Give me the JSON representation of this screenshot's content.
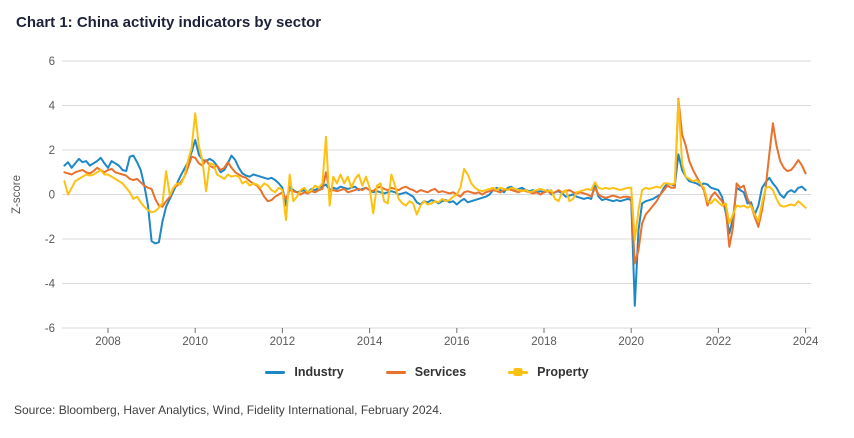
{
  "header": {
    "title": "Chart 1: China activity indicators by sector"
  },
  "footer": {
    "source": "Source: Bloomberg, Haver Analytics, Wind, Fidelity International, February 2024."
  },
  "colors": {
    "industry": "#1e88c7",
    "services": "#e8712c",
    "property": "#fdc112",
    "grid": "#d9d9d9",
    "tick": "#707070",
    "axis_text": "#595959",
    "title_text": "#1e2238",
    "source_text": "#404040"
  },
  "chart_data": {
    "type": "line",
    "title": "Chart 1: China activity indicators by sector",
    "xlabel": "",
    "ylabel": "Z-score",
    "ylim": [
      -6,
      6
    ],
    "yticks": [
      6,
      4,
      2,
      0,
      -2,
      -4,
      -6
    ],
    "xticks": [
      2008,
      2010,
      2012,
      2014,
      2016,
      2018,
      2020,
      2022,
      2024
    ],
    "x_start_year": 2007,
    "x_frequency": "monthly",
    "x_end": "2024-01",
    "grid": "horizontal",
    "legend_position": "bottom",
    "series": [
      {
        "name": "Industry",
        "color": "#1e88c7",
        "values": [
          1.3,
          1.45,
          1.2,
          1.4,
          1.6,
          1.45,
          1.5,
          1.3,
          1.4,
          1.5,
          1.65,
          1.4,
          1.2,
          1.5,
          1.4,
          1.3,
          1.1,
          1.05,
          1.7,
          1.75,
          1.45,
          1.1,
          0.4,
          -0.5,
          -2.1,
          -2.2,
          -2.15,
          -1.2,
          -0.55,
          -0.2,
          0.15,
          0.5,
          0.85,
          1.15,
          1.45,
          1.9,
          2.45,
          1.8,
          1.55,
          1.5,
          1.6,
          1.5,
          1.3,
          1.0,
          1.1,
          1.4,
          1.75,
          1.55,
          1.2,
          0.95,
          0.85,
          0.8,
          0.9,
          0.85,
          0.8,
          0.75,
          0.7,
          0.75,
          0.65,
          0.5,
          0.3,
          -0.5,
          0.35,
          0.2,
          0.1,
          0.15,
          0.2,
          0.1,
          0.25,
          0.2,
          0.3,
          0.35,
          0.45,
          0.2,
          0.3,
          0.25,
          0.35,
          0.3,
          0.25,
          0.3,
          0.35,
          0.2,
          0.25,
          0.3,
          0.2,
          0.1,
          0.15,
          0.1,
          0.05,
          0.1,
          0.15,
          0.1,
          0.0,
          0.05,
          0.1,
          0.0,
          -0.1,
          -0.35,
          -0.45,
          -0.3,
          -0.35,
          -0.25,
          -0.3,
          -0.4,
          -0.3,
          -0.25,
          -0.35,
          -0.3,
          -0.45,
          -0.3,
          -0.2,
          -0.35,
          -0.3,
          -0.25,
          -0.2,
          -0.15,
          -0.1,
          0.0,
          0.2,
          0.3,
          0.2,
          0.1,
          0.3,
          0.35,
          0.2,
          0.25,
          0.3,
          0.2,
          0.15,
          0.2,
          0.1,
          0.15,
          0.1,
          0.2,
          0.0,
          0.1,
          0.15,
          0.05,
          -0.1,
          -0.05,
          0.0,
          -0.1,
          -0.15,
          -0.2,
          -0.15,
          -0.2,
          0.45,
          -0.1,
          -0.25,
          -0.2,
          -0.25,
          -0.3,
          -0.25,
          -0.3,
          -0.25,
          -0.2,
          -0.25,
          -5.0,
          -1.6,
          -0.4,
          -0.3,
          -0.25,
          -0.2,
          -0.1,
          0.0,
          0.3,
          0.5,
          0.45,
          0.4,
          1.8,
          1.1,
          0.8,
          0.6,
          0.55,
          0.5,
          0.4,
          0.5,
          0.45,
          0.3,
          0.25,
          0.2,
          -0.1,
          -0.8,
          -1.75,
          -1.1,
          0.3,
          0.2,
          0.1,
          -0.4,
          -0.35,
          -0.9,
          -0.5,
          0.3,
          0.55,
          0.75,
          0.5,
          0.3,
          0.0,
          -0.15,
          0.1,
          0.2,
          0.1,
          0.3,
          0.35,
          0.2
        ]
      },
      {
        "name": "Services",
        "color": "#e8712c",
        "values": [
          1.0,
          0.95,
          0.9,
          1.0,
          1.05,
          1.1,
          1.0,
          0.95,
          1.05,
          1.2,
          1.1,
          1.0,
          1.1,
          1.15,
          1.0,
          0.95,
          0.9,
          0.85,
          0.7,
          0.65,
          0.7,
          0.55,
          0.4,
          0.3,
          0.25,
          -0.2,
          -0.5,
          -0.55,
          -0.3,
          -0.1,
          0.3,
          0.4,
          0.55,
          0.8,
          1.2,
          1.7,
          1.65,
          1.4,
          1.3,
          1.55,
          1.3,
          1.2,
          1.3,
          1.1,
          1.2,
          1.45,
          1.2,
          1.0,
          0.9,
          0.8,
          0.75,
          0.6,
          0.5,
          0.4,
          0.2,
          -0.1,
          -0.3,
          -0.25,
          -0.1,
          0.0,
          0.1,
          -0.2,
          0.2,
          0.15,
          0.1,
          0.0,
          0.1,
          0.05,
          0.15,
          0.1,
          0.2,
          0.25,
          1.0,
          0.15,
          0.2,
          0.15,
          0.2,
          0.25,
          0.1,
          0.15,
          0.2,
          0.25,
          0.2,
          0.3,
          0.2,
          0.15,
          0.3,
          0.35,
          0.25,
          0.2,
          0.3,
          0.25,
          0.2,
          0.3,
          0.35,
          0.25,
          0.2,
          0.1,
          0.2,
          0.15,
          0.1,
          0.2,
          0.25,
          0.1,
          0.15,
          0.1,
          0.05,
          0.1,
          0.0,
          -0.1,
          0.1,
          0.15,
          0.1,
          0.05,
          0.1,
          0.0,
          0.1,
          0.15,
          0.2,
          0.15,
          0.1,
          0.2,
          0.25,
          0.2,
          0.15,
          0.1,
          0.2,
          0.15,
          0.1,
          0.05,
          0.1,
          0.0,
          0.1,
          0.15,
          0.05,
          0.1,
          0.2,
          0.1,
          0.15,
          0.2,
          0.1,
          0.05,
          0.1,
          0.05,
          0.0,
          -0.1,
          0.3,
          0.0,
          -0.1,
          -0.15,
          -0.1,
          -0.05,
          -0.1,
          -0.15,
          -0.1,
          -0.1,
          -0.15,
          -3.1,
          -2.5,
          -1.3,
          -0.9,
          -0.7,
          -0.5,
          -0.3,
          0.0,
          0.2,
          0.4,
          0.3,
          0.3,
          4.3,
          2.7,
          2.2,
          1.5,
          1.1,
          0.8,
          0.5,
          0.2,
          -0.5,
          -0.1,
          0.1,
          -0.1,
          -0.3,
          -0.6,
          -2.35,
          -1.5,
          0.5,
          0.3,
          0.4,
          -0.2,
          -0.5,
          -1.0,
          -1.45,
          -0.7,
          0.3,
          1.8,
          3.2,
          2.2,
          1.5,
          1.2,
          1.05,
          1.1,
          1.3,
          1.55,
          1.3,
          0.95
        ]
      },
      {
        "name": "Property",
        "color": "#fdc112",
        "values": [
          0.6,
          0.0,
          0.3,
          0.6,
          0.7,
          0.8,
          0.9,
          0.85,
          0.9,
          1.0,
          1.1,
          0.9,
          0.9,
          0.8,
          0.7,
          0.6,
          0.5,
          0.3,
          0.1,
          -0.2,
          -0.1,
          -0.35,
          -0.55,
          -0.7,
          -0.8,
          -0.75,
          -0.6,
          -0.4,
          1.05,
          -0.05,
          0.3,
          0.5,
          0.45,
          0.8,
          1.5,
          2.1,
          3.65,
          2.2,
          1.5,
          0.15,
          1.4,
          1.35,
          0.9,
          0.8,
          0.7,
          0.9,
          0.8,
          0.85,
          0.8,
          0.5,
          0.6,
          0.4,
          0.5,
          0.45,
          0.3,
          0.5,
          0.4,
          0.2,
          0.1,
          0.3,
          0.2,
          -1.15,
          0.9,
          -0.3,
          -0.1,
          0.2,
          0.3,
          0.1,
          0.2,
          0.4,
          0.3,
          0.5,
          2.6,
          -0.5,
          0.8,
          0.5,
          0.9,
          0.5,
          0.8,
          0.3,
          0.7,
          0.9,
          0.4,
          0.8,
          0.3,
          -0.85,
          0.4,
          0.5,
          -0.3,
          -0.4,
          0.9,
          0.4,
          -0.2,
          -0.4,
          -0.5,
          -0.3,
          -0.4,
          -0.9,
          -0.5,
          -0.3,
          -0.45,
          -0.4,
          -0.3,
          -0.35,
          -0.2,
          -0.3,
          -0.25,
          -0.1,
          0.0,
          0.3,
          1.15,
          0.9,
          0.5,
          0.3,
          0.2,
          0.15,
          0.2,
          0.25,
          0.3,
          0.2,
          0.3,
          0.25,
          0.2,
          0.3,
          0.25,
          0.2,
          0.15,
          0.2,
          0.1,
          0.15,
          0.2,
          0.25,
          0.2,
          0.15,
          0.2,
          -0.2,
          -0.3,
          0.1,
          0.2,
          -0.3,
          -0.2,
          0.1,
          0.15,
          0.2,
          0.25,
          0.2,
          0.55,
          0.3,
          0.25,
          0.3,
          0.25,
          0.3,
          0.25,
          0.2,
          0.25,
          0.3,
          0.3,
          -2.05,
          -0.7,
          0.2,
          0.3,
          0.25,
          0.3,
          0.35,
          0.3,
          0.5,
          0.5,
          0.45,
          0.5,
          4.25,
          1.4,
          0.8,
          0.7,
          0.6,
          0.65,
          0.5,
          0.3,
          -0.3,
          -0.4,
          -0.2,
          -0.35,
          -0.5,
          -0.4,
          -1.3,
          -0.9,
          -0.5,
          -0.55,
          -0.5,
          -0.6,
          -0.5,
          -0.9,
          -1.2,
          -0.4,
          0.3,
          0.35,
          0.2,
          -0.2,
          -0.5,
          -0.55,
          -0.5,
          -0.45,
          -0.5,
          -0.3,
          -0.45,
          -0.6
        ]
      }
    ]
  }
}
